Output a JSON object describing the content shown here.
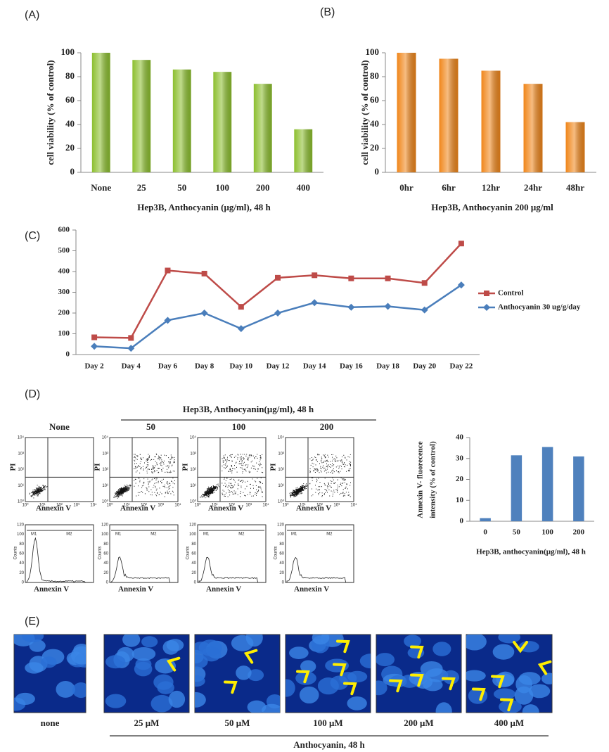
{
  "panel_labels": [
    "(A)",
    "(B)",
    "(C)",
    "(D)",
    "(E)"
  ],
  "chart_data": [
    {
      "type": "bar",
      "ylabel": "cell viability (% of control)",
      "xlabel": "Hep3B, Anthocyanin (μg/ml), 48 h",
      "categories": [
        "None",
        "25",
        "50",
        "100",
        "200",
        "400"
      ],
      "values": [
        100,
        94,
        86,
        84,
        74,
        36
      ],
      "color": "#8cbf2e",
      "ylim": [
        0,
        100
      ],
      "yticks": [
        0,
        20,
        40,
        60,
        80,
        100
      ]
    },
    {
      "type": "bar",
      "ylabel": "cell viability (% of control)",
      "xlabel": "Hep3B, Anthocyanin 200 μg/ml",
      "categories": [
        "0hr",
        "6hr",
        "12hr",
        "24hr",
        "48hr"
      ],
      "values": [
        100,
        95,
        85,
        74,
        42
      ],
      "color": "#f0861a",
      "ylim": [
        0,
        100
      ],
      "yticks": [
        0,
        20,
        40,
        60,
        80,
        100
      ]
    },
    {
      "type": "line",
      "legend": "right",
      "categories": [
        "Day 2",
        "Day 4",
        "Day 6",
        "Day 8",
        "Day 10",
        "Day 12",
        "Day 14",
        "Day 16",
        "Day 18",
        "Day 20",
        "Day 22"
      ],
      "series": [
        {
          "name": "Control",
          "color": "#be4b48",
          "marker": "square",
          "values": [
            83,
            80,
            405,
            390,
            230,
            370,
            382,
            367,
            367,
            345,
            535
          ]
        },
        {
          "name": "Anthocyanin 30 ug/g/day",
          "color": "#4a7ebb",
          "marker": "diamond",
          "values": [
            40,
            30,
            165,
            200,
            125,
            200,
            250,
            228,
            232,
            215,
            335
          ]
        }
      ],
      "ylim": [
        0,
        600
      ],
      "yticks": [
        0,
        100,
        200,
        300,
        400,
        500,
        600
      ]
    },
    {
      "type": "bar",
      "ylabel": [
        "Annexin V- fluorecence",
        "intensity     (% of control)"
      ],
      "xlabel": "Hep3B, anthocyanin(μg/ml), 48 h",
      "categories": [
        "0",
        "50",
        "100",
        "200"
      ],
      "values": [
        1.5,
        31.5,
        35.5,
        31
      ],
      "color": "#4f81bd",
      "ylim": [
        0,
        40
      ],
      "yticks": [
        0,
        10,
        20,
        30,
        40
      ]
    }
  ],
  "flow": {
    "header": "Hep3B, Anthocyanin(μg/ml), 48 h",
    "columns": [
      "None",
      "50",
      "100",
      "200"
    ],
    "pi_label": "PI",
    "annexin_label": "Annexin V",
    "counts_label": "Counts",
    "gates": [
      "M1",
      "M2"
    ],
    "count_ticks": [
      0,
      20,
      40,
      60,
      80,
      100,
      120
    ],
    "log_ticks": [
      "10⁰",
      "10¹",
      "10²",
      "10³",
      "10⁴"
    ]
  },
  "microscopy": {
    "labels": [
      "none",
      "25 μM",
      "50 μM",
      "100 μM",
      "200 μM",
      "400 μM"
    ],
    "caption": "Anthocyanin, 48 h"
  }
}
